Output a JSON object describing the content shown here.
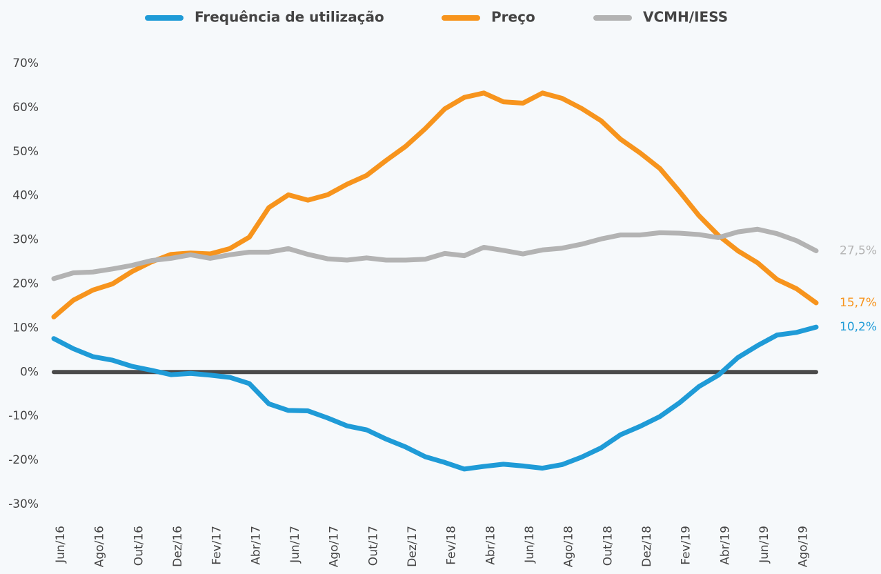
{
  "chart_data": {
    "type": "line",
    "categories": [
      "Jun/16",
      null,
      "Ago/16",
      null,
      "Out/16",
      null,
      "Dez/16",
      null,
      "Fev/17",
      null,
      "Abr/17",
      null,
      "Jun/17",
      null,
      "Ago/17",
      null,
      "Out/17",
      null,
      "Dez/17",
      null,
      "Fev/18",
      null,
      "Abr/18",
      null,
      "Jun/18",
      null,
      "Ago/18",
      null,
      "Out/18",
      null,
      "Dez/18",
      null,
      "Fev/19",
      null,
      "Abr/19",
      null,
      "Jun/19",
      null,
      "Ago/19",
      null
    ],
    "series": [
      {
        "name": "Frequência de utilização",
        "color": "#1f9bd7",
        "values": [
          7.6,
          5.3,
          3.5,
          2.7,
          1.3,
          0.4,
          -0.6,
          -0.3,
          -0.7,
          -1.2,
          -2.6,
          -7.2,
          -8.7,
          -8.8,
          -10.4,
          -12.2,
          -13.1,
          -15.2,
          -17,
          -19.2,
          -20.5,
          -22,
          -21.4,
          -20.9,
          -21.3,
          -21.8,
          -21,
          -19.3,
          -17.2,
          -14.2,
          -12.3,
          -10.1,
          -7,
          -3.3,
          -0.7,
          3.3,
          6,
          8.4,
          9,
          10.2
        ],
        "value_labels": [
          null,
          null,
          null,
          null,
          null,
          null,
          null,
          null,
          null,
          null,
          null,
          null,
          null,
          null,
          null,
          null,
          null,
          null,
          null,
          null,
          null,
          null,
          null,
          null,
          null,
          null,
          null,
          null,
          null,
          null,
          null,
          null,
          null,
          null,
          null,
          null,
          null,
          null,
          null,
          "10,2%"
        ]
      },
      {
        "name": "Preço",
        "color": "#f7941d",
        "values": [
          12.5,
          16.3,
          18.6,
          20,
          22.8,
          25,
          26.7,
          27,
          26.8,
          28,
          30.6,
          37.3,
          40.2,
          39,
          40.2,
          42.6,
          44.6,
          48,
          51.2,
          55.2,
          59.7,
          62.3,
          63.3,
          61.3,
          61,
          63.3,
          62.1,
          59.8,
          57,
          52.8,
          49.7,
          46.2,
          41,
          35.5,
          31,
          27.5,
          24.8,
          21,
          18.9,
          15.7
        ],
        "value_labels": [
          null,
          null,
          null,
          null,
          null,
          null,
          null,
          null,
          null,
          null,
          null,
          null,
          null,
          null,
          null,
          null,
          null,
          null,
          null,
          null,
          null,
          null,
          null,
          null,
          null,
          null,
          null,
          null,
          null,
          null,
          null,
          null,
          null,
          null,
          null,
          null,
          null,
          null,
          null,
          "15,7%"
        ]
      },
      {
        "name": "VCMH/IESS",
        "color": "#b3b3b3",
        "values": [
          21.2,
          22.5,
          22.7,
          23.4,
          24.2,
          25.3,
          25.8,
          26.6,
          25.8,
          26.6,
          27.2,
          27.2,
          28,
          26.7,
          25.7,
          25.4,
          25.9,
          25.4,
          25.4,
          25.6,
          26.9,
          26.4,
          28.3,
          27.6,
          26.8,
          27.7,
          28.1,
          29,
          30.2,
          31.1,
          31.1,
          31.6,
          31.5,
          31.2,
          30.5,
          31.8,
          32.4,
          31.4,
          29.8,
          27.5
        ],
        "value_labels": [
          null,
          null,
          null,
          null,
          null,
          null,
          null,
          null,
          null,
          null,
          null,
          null,
          null,
          null,
          null,
          null,
          null,
          null,
          null,
          null,
          null,
          null,
          null,
          null,
          null,
          null,
          null,
          null,
          null,
          null,
          null,
          null,
          null,
          null,
          null,
          null,
          null,
          null,
          null,
          "27,5%"
        ]
      }
    ],
    "ylim": [
      -30,
      70
    ],
    "yticks": [
      {
        "value": -30,
        "label": "-30%"
      },
      {
        "value": -20,
        "label": "-20%"
      },
      {
        "value": -10,
        "label": "-10%"
      },
      {
        "value": 0,
        "label": "0%"
      },
      {
        "value": 10,
        "label": "10%"
      },
      {
        "value": 20,
        "label": "20%"
      },
      {
        "value": 30,
        "label": "30%"
      },
      {
        "value": 40,
        "label": "40%"
      },
      {
        "value": 50,
        "label": "50%"
      },
      {
        "value": 60,
        "label": "60%"
      },
      {
        "value": 70,
        "label": "70%"
      }
    ],
    "grid": false,
    "legend": "top"
  }
}
